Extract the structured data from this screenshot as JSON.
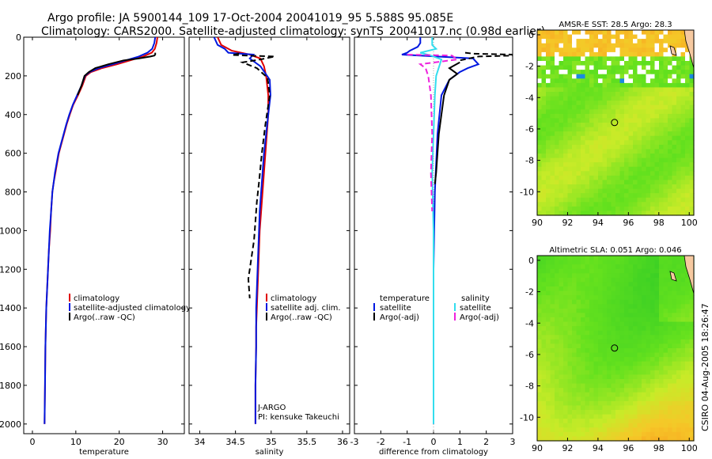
{
  "header": {
    "line1": "Argo profile: JA 5900144_109 17-Oct-2004 20041019_95 5.588S 95.085E",
    "line2": "Climatology: CARS2000. Satellite-adjusted climatology: synTS_20041017.nc (0.98d earlier)"
  },
  "side_label": "CSIRO 04-Aug-2005 18:26:47",
  "colors": {
    "red": "#e00000",
    "blue": "#0018e0",
    "black": "#000000",
    "cyan": "#33ddee",
    "magenta": "#ee22dd"
  },
  "chart_data": [
    {
      "type": "line",
      "xlabel": "temperature",
      "xlim": [
        -2,
        35
      ],
      "ylim": [
        2050,
        0
      ],
      "xticks": [
        0,
        10,
        20,
        30
      ],
      "yticks": [
        0,
        200,
        400,
        600,
        800,
        1000,
        1200,
        1400,
        1600,
        1800,
        2000
      ],
      "legend": [
        "climatology",
        "satellite-adjusted climatology",
        "Argo(..raw -QC)"
      ],
      "series": [
        {
          "name": "climatology",
          "color": "red",
          "dash": false,
          "x": [
            28.8,
            28.6,
            28.2,
            27.5,
            25.5,
            22.5,
            19.5,
            16,
            13.5,
            12.3,
            11.5,
            10.5,
            9.4,
            8.6,
            7.9,
            7.3,
            6.7,
            6.1,
            5.7,
            5.3,
            4.9,
            4.6,
            4.3,
            4.1,
            3.8,
            3.6,
            3.4,
            3.2,
            3.0,
            2.9,
            2.8
          ],
          "y": [
            0,
            30,
            60,
            80,
            100,
            120,
            140,
            160,
            180,
            200,
            250,
            300,
            350,
            400,
            450,
            500,
            550,
            600,
            650,
            700,
            750,
            800,
            900,
            1000,
            1100,
            1200,
            1300,
            1400,
            1600,
            1800,
            2000
          ]
        },
        {
          "name": "satellite-adjusted climatology",
          "color": "blue",
          "dash": false,
          "x": [
            28.3,
            28.1,
            27.6,
            26.5,
            24.5,
            21.5,
            18.5,
            15.3,
            13.2,
            12.1,
            11.3,
            10.3,
            9.3,
            8.5,
            7.8,
            7.2,
            6.6,
            6.0,
            5.6,
            5.2,
            4.9,
            4.6,
            4.3,
            4.0,
            3.8,
            3.6,
            3.4,
            3.2,
            3.0,
            2.9,
            2.8
          ],
          "y": [
            0,
            30,
            60,
            80,
            100,
            120,
            140,
            160,
            180,
            200,
            250,
            300,
            350,
            400,
            450,
            500,
            550,
            600,
            650,
            700,
            750,
            800,
            900,
            1000,
            1100,
            1200,
            1300,
            1400,
            1600,
            1800,
            2000
          ]
        },
        {
          "name": "Argo(..raw -QC)",
          "color": "black",
          "dash": false,
          "x": [
            28.3,
            28.3,
            28.1,
            27.2,
            24.5,
            21,
            17.5,
            14.5,
            13.0,
            12.0,
            11.3,
            10.4
          ],
          "y": [
            80,
            90,
            95,
            100,
            110,
            120,
            140,
            160,
            180,
            200,
            250,
            300
          ]
        }
      ]
    },
    {
      "type": "line",
      "xlabel": "salinity",
      "xlim": [
        33.85,
        36.1
      ],
      "ylim": [
        2050,
        0
      ],
      "xticks": [
        34,
        34.5,
        35,
        35.5,
        36
      ],
      "xticklabels": [
        "34",
        "34.5",
        "35",
        "35.5",
        "36"
      ],
      "legend": [
        "climatology",
        "satellite adj. clim.",
        "Argo(..raw -QC)"
      ],
      "annotations": [
        "J-ARGO",
        "PI: kensuke Takeuchi"
      ],
      "series": [
        {
          "name": "climatology",
          "color": "red",
          "dash": false,
          "x": [
            34.25,
            34.3,
            34.45,
            34.7,
            34.85,
            34.9,
            34.93,
            34.96,
            34.96,
            34.94,
            34.92,
            34.9,
            34.88,
            34.86,
            34.84,
            34.83,
            34.82,
            34.81,
            34.8,
            34.79,
            34.79,
            34.78,
            34.78
          ],
          "y": [
            0,
            40,
            70,
            90,
            110,
            150,
            200,
            300,
            400,
            500,
            600,
            700,
            800,
            900,
            1000,
            1100,
            1200,
            1300,
            1400,
            1500,
            1600,
            1800,
            2000
          ]
        },
        {
          "name": "satellite adj. clim.",
          "color": "blue",
          "dash": false,
          "x": [
            34.2,
            34.25,
            34.35,
            34.4,
            34.75,
            34.7,
            34.85,
            34.98,
            34.99,
            34.96,
            34.93,
            34.9,
            34.88,
            34.86,
            34.84,
            34.83,
            34.82,
            34.81,
            34.8,
            34.79,
            34.79,
            34.78,
            34.78
          ],
          "y": [
            0,
            40,
            60,
            80,
            90,
            110,
            150,
            220,
            300,
            400,
            500,
            600,
            700,
            800,
            900,
            1000,
            1100,
            1200,
            1300,
            1400,
            1600,
            1800,
            2000
          ]
        },
        {
          "name": "Argo(..raw -QC)",
          "color": "black",
          "dash": true,
          "x": [
            34.55,
            34.45,
            35.05,
            34.85,
            34.6,
            34.8,
            34.95,
            34.98,
            34.92,
            34.87,
            34.83,
            34.8,
            34.78,
            34.76,
            34.72,
            34.68,
            34.7
          ],
          "y": [
            85,
            92,
            100,
            115,
            130,
            160,
            210,
            300,
            450,
            600,
            750,
            850,
            950,
            1050,
            1150,
            1250,
            1350
          ]
        }
      ]
    },
    {
      "type": "line",
      "xlabel": "difference from climatology",
      "xlim": [
        -3,
        3
      ],
      "ylim": [
        2050,
        0
      ],
      "xticks": [
        -3,
        -2,
        -1,
        0,
        1,
        2,
        3
      ],
      "legend": [
        "temperature",
        "satellite",
        "Argo(-adj)",
        "salinity",
        "satellite",
        "Argo(-adj)"
      ],
      "series": [
        {
          "name": "temperature satellite",
          "color": "blue",
          "dash": false,
          "x": [
            -0.5,
            -0.5,
            -0.6,
            -0.9,
            -1.0,
            -1.2,
            1.5,
            1.7,
            1.3,
            1.0,
            0.6,
            0.3,
            0.15,
            0.05,
            0.0,
            0.0,
            0.0
          ],
          "y": [
            0,
            30,
            50,
            70,
            80,
            90,
            110,
            140,
            160,
            180,
            220,
            300,
            500,
            800,
            1200,
            1600,
            2000
          ]
        },
        {
          "name": "temperature Argo(-adj)",
          "color": "black",
          "dash": true,
          "x": [
            1.2,
            1.5,
            3.0,
            3.0,
            1.7,
            1.0
          ],
          "y": [
            80,
            85,
            90,
            95,
            100,
            120
          ]
        },
        {
          "name": "temperature Argo(-adj) solid",
          "color": "black",
          "dash": false,
          "x": [
            1.0,
            0.6,
            0.9,
            0.6,
            0.4,
            0.3,
            0.2,
            0.15,
            0.1,
            0.05
          ],
          "y": [
            130,
            160,
            190,
            220,
            300,
            400,
            500,
            600,
            700,
            760
          ]
        },
        {
          "name": "salinity satellite",
          "color": "cyan",
          "dash": false,
          "x": [
            -0.05,
            -0.05,
            0.1,
            -0.5,
            -0.1,
            0.3,
            0.1,
            0.05,
            0.0,
            -0.05,
            0.0,
            0.0
          ],
          "y": [
            0,
            40,
            60,
            80,
            95,
            115,
            200,
            300,
            500,
            700,
            1000,
            2000
          ]
        },
        {
          "name": "salinity Argo(-adj)",
          "color": "magenta",
          "dash": true,
          "x": [
            -1.0,
            0.7,
            0.9,
            -0.5,
            -0.3,
            -0.2,
            -0.1,
            -0.05,
            -0.1,
            -0.05
          ],
          "y": [
            90,
            95,
            115,
            140,
            160,
            200,
            300,
            500,
            700,
            900
          ]
        }
      ]
    },
    {
      "type": "heatmap",
      "title": "AMSR-E SST: 28.5 Argo: 28.3",
      "xlim": [
        90,
        100.3
      ],
      "ylim": [
        -11.5,
        0.3
      ],
      "xticks": [
        90,
        92,
        94,
        96,
        98,
        100
      ],
      "yticks": [
        0,
        -2,
        -4,
        -6,
        -8,
        -10
      ],
      "marker": [
        95.085,
        -5.588
      ]
    },
    {
      "type": "heatmap",
      "title": "Altimetric SLA: 0.051 Argo: 0.046",
      "xlim": [
        90,
        100.3
      ],
      "ylim": [
        -11.5,
        0.3
      ],
      "xticks": [
        90,
        92,
        94,
        96,
        98,
        100
      ],
      "yticks": [
        0,
        -2,
        -4,
        -6,
        -8,
        -10
      ],
      "marker": [
        95.085,
        -5.588
      ]
    }
  ]
}
